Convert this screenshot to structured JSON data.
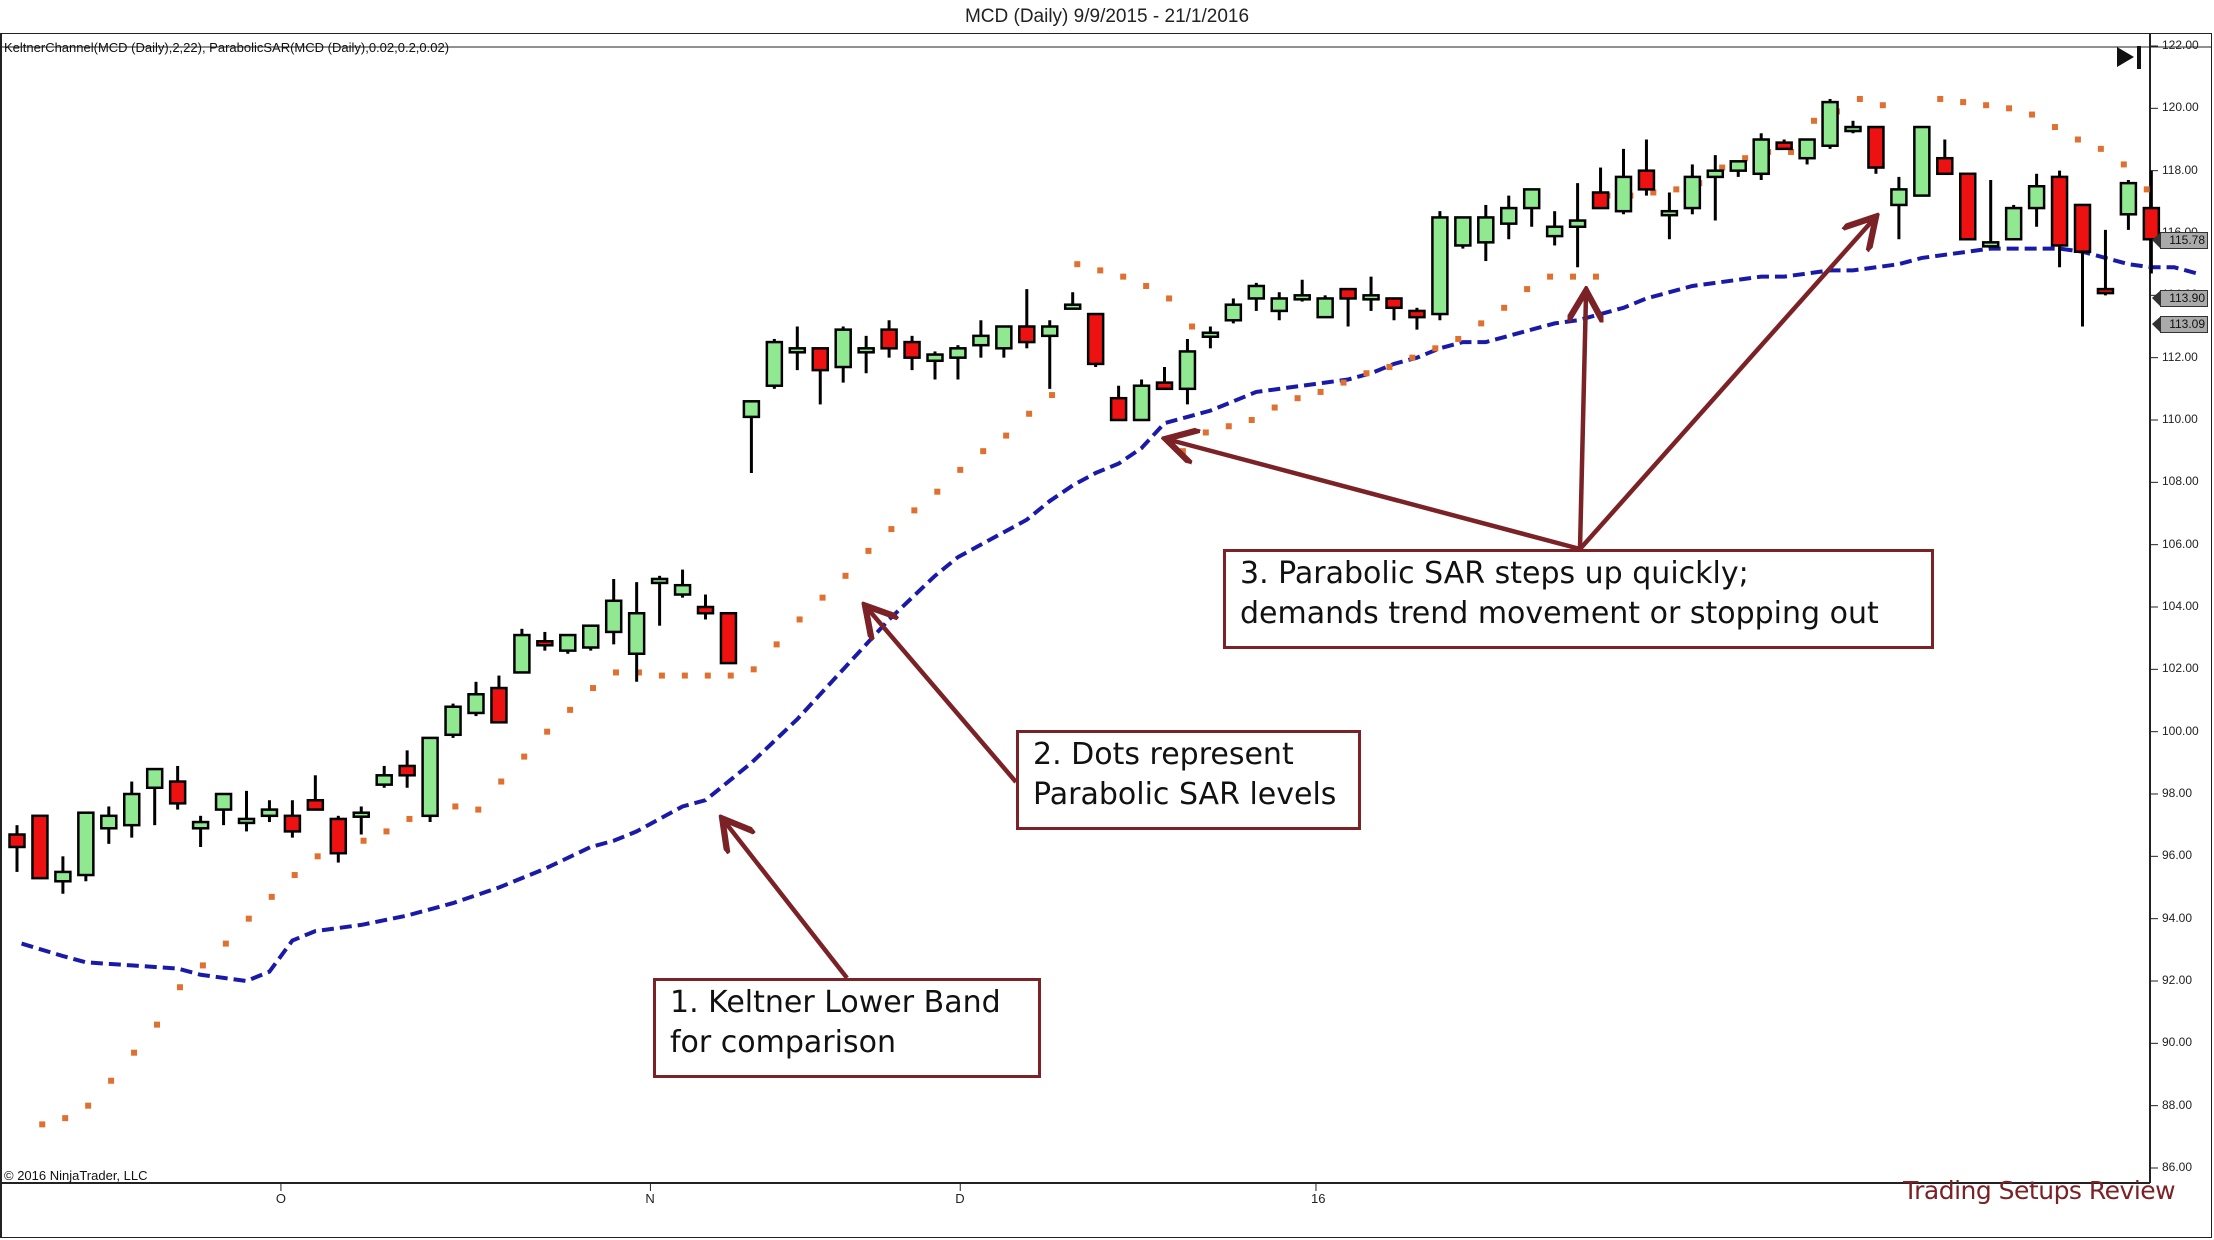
{
  "header": {
    "title": "MCD (Daily)  9/9/2015 - 21/1/2016",
    "indicator_label": "KeltnerChannel(MCD (Daily),2,22), ParabolicSAR(MCD (Daily),0.02,0.2,0.02)",
    "copyright": "© 2016 NinjaTrader, LLC",
    "watermark": "Trading Setups Review",
    "end_button_icon": "skip-to-end-icon"
  },
  "colors": {
    "up_candle": "#90e890",
    "down_candle": "#ee1111",
    "wick": "#000000",
    "sar_dot": "#e07030",
    "keltner_lower": "#1a1aa8",
    "annotation": "#7b2226"
  },
  "annotations": [
    {
      "id": "1",
      "lines": [
        "1. Keltner Lower Band",
        "for comparison"
      ]
    },
    {
      "id": "2",
      "lines": [
        "2. Dots represent",
        "Parabolic SAR levels"
      ]
    },
    {
      "id": "3",
      "lines": [
        "3. Parabolic SAR steps up quickly;",
        "demands trend movement or stopping out"
      ]
    }
  ],
  "price_tags": [
    {
      "label": "115.78",
      "value": 115.78,
      "color": "#aaaaaa"
    },
    {
      "label": "113.90",
      "value": 113.9,
      "color": "#aaaaaa"
    },
    {
      "label": "113.09",
      "value": 113.09,
      "color": "#aaaaaa"
    }
  ],
  "chart_data": {
    "type": "candlestick",
    "title": "MCD (Daily)  9/9/2015 - 21/1/2016",
    "subtitle": "KeltnerChannel(MCD (Daily),2,22), ParabolicSAR(MCD (Daily),0.02,0.2,0.02)",
    "xlabel": "",
    "ylabel": "",
    "ylim": [
      86,
      122
    ],
    "y_ticks": [
      "122.00",
      "120.00",
      "118.00",
      "116.00",
      "114.00",
      "112.00",
      "110.00",
      "108.00",
      "106.00",
      "104.00",
      "102.00",
      "100.00",
      "98.00",
      "96.00",
      "94.00",
      "92.00",
      "90.00",
      "88.00",
      "86.00"
    ],
    "x_ticks": [
      {
        "label": "O",
        "index": 11.5
      },
      {
        "label": "N",
        "index": 27.6
      },
      {
        "label": "D",
        "index": 41.1
      },
      {
        "label": "16",
        "index": 56.6
      }
    ],
    "grid": false,
    "candles": [
      [
        96.7,
        97.0,
        95.5,
        96.3
      ],
      [
        97.3,
        97.3,
        95.3,
        95.3
      ],
      [
        95.2,
        96.0,
        94.8,
        95.5
      ],
      [
        95.4,
        97.4,
        95.2,
        97.4
      ],
      [
        96.9,
        97.6,
        96.4,
        97.3
      ],
      [
        97.0,
        98.4,
        96.6,
        98.0
      ],
      [
        98.2,
        98.8,
        97.0,
        98.8
      ],
      [
        98.4,
        98.9,
        97.5,
        97.7
      ],
      [
        96.9,
        97.3,
        96.3,
        97.1
      ],
      [
        97.5,
        98.0,
        97.0,
        98.0
      ],
      [
        97.2,
        98.1,
        96.8,
        97.2
      ],
      [
        97.3,
        97.8,
        97.1,
        97.5
      ],
      [
        97.3,
        97.8,
        96.6,
        96.8
      ],
      [
        97.8,
        98.6,
        97.5,
        97.5
      ],
      [
        97.2,
        97.3,
        95.8,
        96.1
      ],
      [
        97.4,
        97.6,
        96.7,
        97.4
      ],
      [
        98.3,
        98.9,
        98.2,
        98.6
      ],
      [
        98.9,
        99.4,
        98.2,
        98.6
      ],
      [
        97.3,
        99.8,
        97.1,
        99.8
      ],
      [
        99.9,
        100.9,
        99.8,
        100.8
      ],
      [
        100.6,
        101.6,
        100.5,
        101.2
      ],
      [
        101.4,
        101.8,
        100.4,
        100.3
      ],
      [
        101.9,
        103.3,
        101.9,
        103.1
      ],
      [
        102.9,
        103.2,
        102.6,
        102.8
      ],
      [
        102.6,
        103.0,
        102.5,
        103.1
      ],
      [
        102.7,
        103.4,
        102.6,
        103.4
      ],
      [
        103.2,
        104.9,
        102.8,
        104.2
      ],
      [
        102.5,
        104.8,
        101.6,
        103.8
      ],
      [
        104.9,
        105.0,
        103.4,
        104.9
      ],
      [
        104.4,
        105.2,
        104.3,
        104.7
      ],
      [
        104.0,
        104.4,
        103.6,
        103.8
      ],
      [
        103.8,
        103.6,
        102.3,
        102.2
      ],
      [
        110.1,
        110.6,
        108.3,
        110.6
      ],
      [
        111.1,
        112.6,
        111.0,
        112.5
      ],
      [
        112.3,
        113.0,
        111.6,
        112.3
      ],
      [
        112.3,
        112.1,
        110.5,
        111.6
      ],
      [
        111.7,
        113.0,
        111.2,
        112.9
      ],
      [
        112.3,
        112.7,
        111.5,
        112.3
      ],
      [
        112.9,
        113.2,
        112.0,
        112.3
      ],
      [
        112.5,
        112.7,
        111.6,
        112.0
      ],
      [
        111.9,
        112.2,
        111.3,
        112.1
      ],
      [
        112.0,
        112.4,
        111.3,
        112.3
      ],
      [
        112.4,
        113.2,
        112.0,
        112.7
      ],
      [
        112.3,
        113.0,
        112.0,
        113.0
      ],
      [
        113.0,
        114.2,
        112.3,
        112.5
      ],
      [
        112.7,
        113.2,
        111.0,
        113.0
      ],
      [
        113.7,
        114.1,
        113.6,
        113.7
      ],
      [
        113.4,
        113.4,
        111.7,
        111.8
      ],
      [
        110.7,
        111.1,
        110.0,
        110.0
      ],
      [
        110.0,
        111.3,
        110.0,
        111.1
      ],
      [
        111.2,
        111.7,
        111.0,
        111.0
      ],
      [
        111.0,
        112.6,
        110.5,
        112.2
      ],
      [
        112.7,
        113.0,
        112.3,
        112.8
      ],
      [
        113.2,
        113.9,
        113.1,
        113.7
      ],
      [
        113.9,
        114.4,
        113.5,
        114.3
      ],
      [
        113.5,
        114.1,
        113.2,
        113.9
      ],
      [
        114.0,
        114.5,
        113.8,
        114.0
      ],
      [
        113.3,
        114.0,
        113.3,
        113.9
      ],
      [
        114.2,
        114.2,
        113.0,
        113.9
      ],
      [
        114.0,
        114.6,
        113.5,
        114.0
      ],
      [
        113.9,
        113.9,
        113.2,
        113.6
      ],
      [
        113.5,
        113.6,
        112.9,
        113.3
      ],
      [
        113.4,
        116.7,
        113.2,
        116.5
      ],
      [
        115.6,
        116.5,
        115.5,
        116.5
      ],
      [
        115.7,
        116.9,
        115.1,
        116.5
      ],
      [
        116.3,
        117.2,
        115.8,
        116.8
      ],
      [
        116.8,
        117.4,
        116.2,
        117.4
      ],
      [
        115.9,
        116.7,
        115.6,
        116.2
      ],
      [
        116.2,
        117.6,
        114.9,
        116.4
      ],
      [
        117.3,
        118.1,
        116.9,
        116.8
      ],
      [
        116.7,
        118.7,
        116.6,
        117.8
      ],
      [
        118.0,
        119.0,
        117.2,
        117.4
      ],
      [
        116.7,
        117.3,
        115.8,
        116.7
      ],
      [
        116.8,
        118.2,
        116.6,
        117.8
      ],
      [
        117.8,
        118.5,
        116.4,
        118.0
      ],
      [
        118.0,
        118.2,
        117.8,
        118.3
      ],
      [
        117.9,
        119.2,
        117.7,
        119.0
      ],
      [
        118.9,
        119.0,
        118.8,
        118.7
      ],
      [
        118.4,
        118.9,
        118.2,
        119.0
      ],
      [
        118.8,
        120.3,
        118.7,
        120.2
      ],
      [
        119.4,
        119.6,
        119.2,
        119.4
      ],
      [
        119.4,
        119.2,
        117.9,
        118.1
      ],
      [
        116.9,
        117.8,
        115.8,
        117.4
      ],
      [
        117.2,
        119.4,
        117.4,
        119.4
      ],
      [
        118.4,
        119.0,
        117.9,
        117.9
      ],
      [
        117.9,
        117.8,
        115.8,
        115.8
      ],
      [
        115.7,
        117.7,
        115.6,
        115.7
      ],
      [
        115.8,
        116.9,
        115.9,
        116.8
      ],
      [
        116.8,
        117.9,
        116.2,
        117.5
      ],
      [
        117.8,
        118.0,
        114.9,
        115.6
      ],
      [
        116.9,
        116.9,
        113.0,
        115.4
      ],
      [
        114.2,
        116.1,
        114.0,
        114.1
      ],
      [
        116.6,
        117.7,
        116.1,
        117.6
      ],
      [
        116.8,
        118.0,
        114.7,
        115.8
      ]
    ],
    "sar": [
      97.4,
      null,
      null,
      null,
      null,
      null,
      null,
      null,
      null,
      null,
      null,
      null,
      null,
      null,
      null,
      null,
      null,
      null,
      null,
      null,
      null,
      null,
      null,
      null,
      null,
      null,
      null,
      null,
      null,
      null,
      null,
      null,
      null,
      null,
      null,
      null,
      null,
      null,
      null,
      null,
      null,
      null,
      null,
      null,
      null,
      null,
      null,
      null,
      null,
      null,
      null,
      null,
      null,
      null,
      null,
      null,
      null,
      null,
      null,
      null,
      null,
      null,
      null,
      null,
      null,
      null,
      null,
      null,
      null,
      null,
      null,
      null,
      null,
      null,
      null,
      null,
      null,
      null,
      null,
      null,
      null,
      null,
      null,
      null,
      null,
      null,
      null,
      null,
      null,
      null,
      null,
      null,
      null,
      null
    ],
    "sar_points": [
      [
        1.1,
        87.4
      ],
      [
        2.1,
        87.6
      ],
      [
        3.1,
        88.0
      ],
      [
        4.1,
        88.8
      ],
      [
        5.1,
        89.7
      ],
      [
        6.1,
        90.6
      ],
      [
        7.1,
        91.8
      ],
      [
        8.1,
        92.5
      ],
      [
        9.1,
        93.2
      ],
      [
        10.1,
        94.0
      ],
      [
        11.1,
        94.7
      ],
      [
        12.1,
        95.4
      ],
      [
        13.1,
        96.0
      ],
      [
        14.1,
        96.5
      ],
      [
        15.1,
        96.5
      ],
      [
        16.1,
        96.8
      ],
      [
        17.1,
        97.2
      ],
      [
        18.1,
        97.4
      ],
      [
        19.1,
        97.6
      ],
      [
        20.1,
        97.5
      ],
      [
        21.1,
        98.4
      ],
      [
        22.1,
        99.2
      ],
      [
        23.1,
        100.0
      ],
      [
        24.1,
        100.7
      ],
      [
        25.1,
        101.4
      ],
      [
        26.1,
        101.9
      ],
      [
        27.1,
        101.9
      ],
      [
        28.1,
        101.8
      ],
      [
        29.1,
        101.8
      ],
      [
        30.1,
        101.8
      ],
      [
        31.1,
        101.8
      ],
      [
        32.1,
        102.0
      ],
      [
        33.1,
        102.8
      ],
      [
        34.1,
        103.6
      ],
      [
        35.1,
        104.3
      ],
      [
        36.1,
        105.0
      ],
      [
        37.1,
        105.8
      ],
      [
        38.1,
        106.5
      ],
      [
        39.1,
        107.1
      ],
      [
        40.1,
        107.7
      ],
      [
        41.1,
        108.4
      ],
      [
        42.1,
        109.0
      ],
      [
        43.1,
        109.5
      ],
      [
        44.1,
        110.2
      ],
      [
        45.1,
        110.8
      ],
      [
        46.2,
        115.0
      ],
      [
        47.2,
        114.8
      ],
      [
        48.2,
        114.6
      ],
      [
        49.2,
        114.3
      ],
      [
        50.2,
        113.9
      ],
      [
        51.2,
        113.0
      ],
      [
        50.8,
        109.0
      ],
      [
        51.8,
        109.6
      ],
      [
        52.8,
        109.8
      ],
      [
        53.8,
        110.0
      ],
      [
        54.8,
        110.4
      ],
      [
        55.8,
        110.7
      ],
      [
        56.8,
        110.9
      ],
      [
        57.8,
        111.2
      ],
      [
        58.8,
        111.5
      ],
      [
        59.8,
        111.7
      ],
      [
        60.8,
        112.0
      ],
      [
        61.8,
        112.3
      ],
      [
        62.8,
        112.6
      ],
      [
        63.8,
        113.1
      ],
      [
        64.8,
        113.6
      ],
      [
        65.8,
        114.2
      ],
      [
        66.8,
        114.6
      ],
      [
        67.8,
        114.6
      ],
      [
        68.8,
        114.6
      ],
      [
        69.3,
        117.2
      ],
      [
        70.3,
        117.2
      ],
      [
        71.3,
        117.3
      ],
      [
        72.3,
        117.4
      ],
      [
        73.3,
        117.6
      ],
      [
        74.3,
        118.1
      ],
      [
        75.3,
        118.4
      ],
      [
        76.3,
        118.6
      ],
      [
        77.3,
        118.6
      ],
      [
        78.3,
        119.6
      ],
      [
        79.3,
        119.9
      ],
      [
        80.3,
        120.3
      ],
      [
        81.3,
        120.1
      ],
      [
        83.8,
        120.3
      ],
      [
        84.8,
        120.2
      ],
      [
        85.8,
        120.1
      ],
      [
        86.8,
        120.0
      ],
      [
        87.8,
        119.8
      ],
      [
        88.8,
        119.4
      ],
      [
        89.8,
        119.0
      ],
      [
        90.8,
        118.7
      ],
      [
        91.8,
        118.2
      ],
      [
        92.8,
        117.4
      ],
      [
        93.8,
        113.1
      ],
      [
        94.8,
        113.1
      ]
    ],
    "keltner_lower": [
      [
        0.2,
        93.2
      ],
      [
        2,
        92.8
      ],
      [
        3,
        92.6
      ],
      [
        5,
        92.5
      ],
      [
        7,
        92.4
      ],
      [
        8,
        92.2
      ],
      [
        9,
        92.1
      ],
      [
        10,
        92.0
      ],
      [
        11,
        92.3
      ],
      [
        12,
        93.3
      ],
      [
        13,
        93.6
      ],
      [
        15,
        93.8
      ],
      [
        17,
        94.1
      ],
      [
        19,
        94.5
      ],
      [
        21,
        95.0
      ],
      [
        23,
        95.6
      ],
      [
        25,
        96.3
      ],
      [
        26,
        96.5
      ],
      [
        27,
        96.8
      ],
      [
        28,
        97.2
      ],
      [
        29,
        97.6
      ],
      [
        30,
        97.8
      ],
      [
        31,
        98.4
      ],
      [
        32,
        99.0
      ],
      [
        33,
        99.7
      ],
      [
        34,
        100.4
      ],
      [
        35,
        101.2
      ],
      [
        36,
        102.0
      ],
      [
        37,
        102.8
      ],
      [
        38,
        103.6
      ],
      [
        39,
        104.3
      ],
      [
        40,
        105.0
      ],
      [
        41,
        105.6
      ],
      [
        42,
        106.0
      ],
      [
        43,
        106.4
      ],
      [
        44,
        106.8
      ],
      [
        45,
        107.4
      ],
      [
        46,
        107.9
      ],
      [
        47,
        108.3
      ],
      [
        48,
        108.6
      ],
      [
        49,
        109.1
      ],
      [
        50,
        109.9
      ],
      [
        51,
        110.1
      ],
      [
        52,
        110.3
      ],
      [
        53,
        110.6
      ],
      [
        54,
        110.9
      ],
      [
        55,
        111.0
      ],
      [
        56,
        111.1
      ],
      [
        57,
        111.2
      ],
      [
        58,
        111.3
      ],
      [
        59,
        111.5
      ],
      [
        60,
        111.8
      ],
      [
        61,
        112.0
      ],
      [
        62,
        112.3
      ],
      [
        63,
        112.5
      ],
      [
        64,
        112.5
      ],
      [
        65,
        112.7
      ],
      [
        66,
        112.9
      ],
      [
        67,
        113.1
      ],
      [
        68,
        113.2
      ],
      [
        69,
        113.4
      ],
      [
        70,
        113.6
      ],
      [
        71,
        113.9
      ],
      [
        72,
        114.1
      ],
      [
        73,
        114.3
      ],
      [
        74,
        114.4
      ],
      [
        75,
        114.5
      ],
      [
        76,
        114.6
      ],
      [
        77,
        114.6
      ],
      [
        78,
        114.7
      ],
      [
        79,
        114.8
      ],
      [
        80,
        114.8
      ],
      [
        81,
        114.9
      ],
      [
        82,
        115.0
      ],
      [
        83,
        115.2
      ],
      [
        84,
        115.3
      ],
      [
        85,
        115.4
      ],
      [
        86,
        115.5
      ],
      [
        87,
        115.5
      ],
      [
        88,
        115.5
      ],
      [
        89,
        115.5
      ],
      [
        90,
        115.4
      ],
      [
        91,
        115.2
      ],
      [
        92,
        115.0
      ],
      [
        93,
        114.9
      ],
      [
        94,
        114.9
      ],
      [
        95,
        114.7
      ]
    ]
  }
}
